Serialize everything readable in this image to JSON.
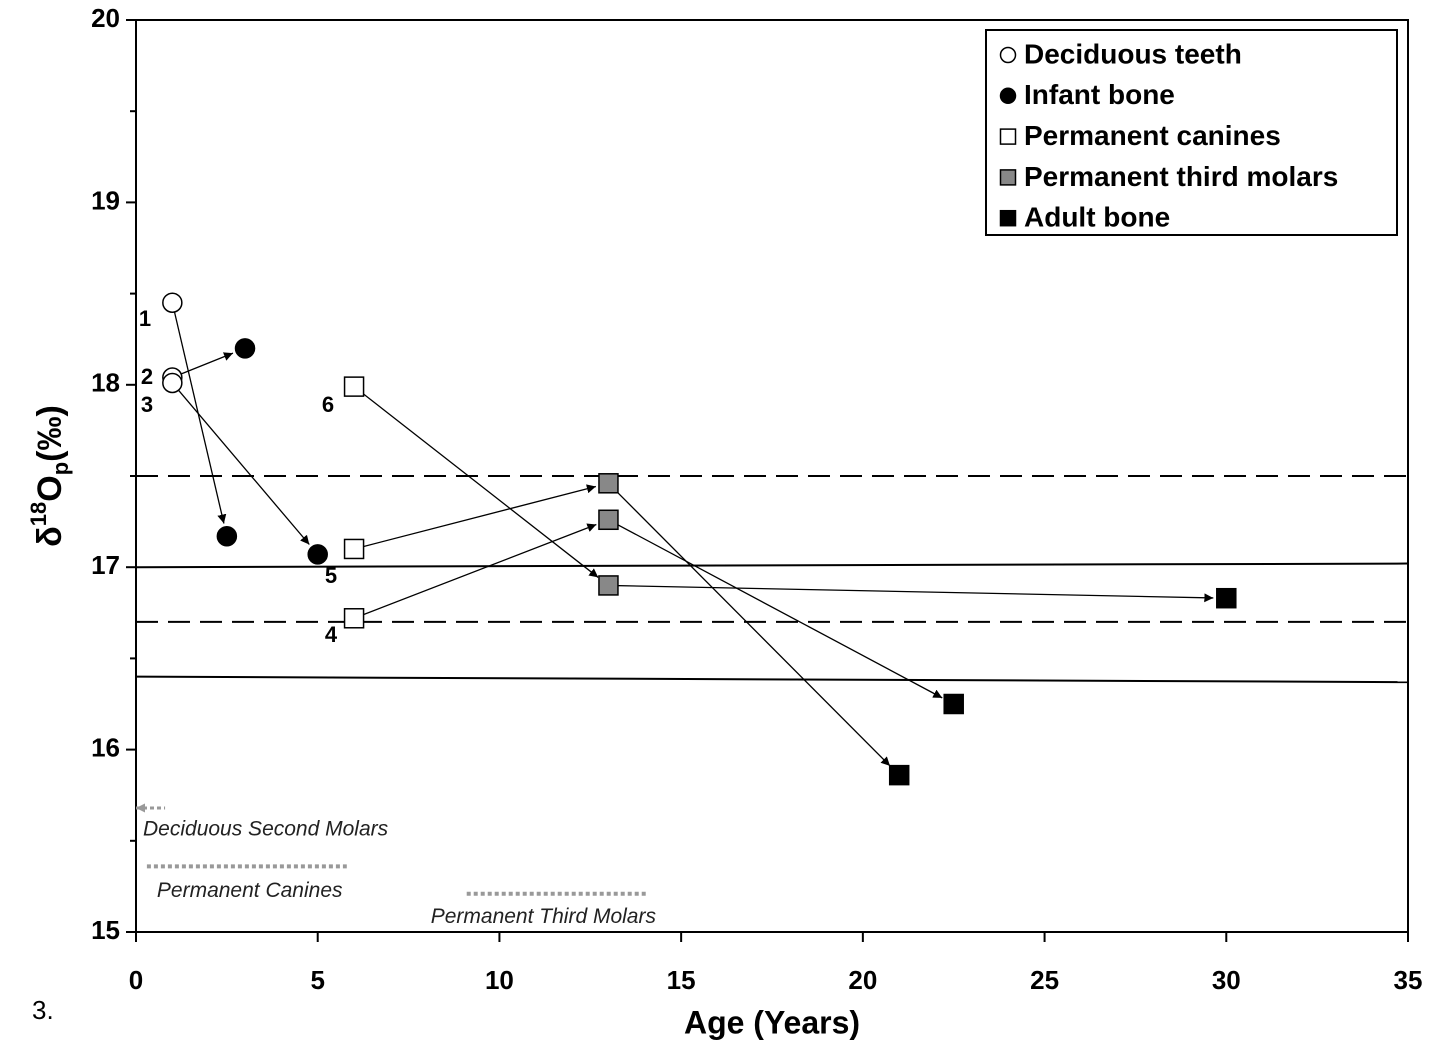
{
  "figure_number": "3.",
  "chart_data": {
    "type": "scatter",
    "xlabel": "Age (Years)",
    "ylabel": {
      "delta": "δ",
      "sup": "18",
      "main": "O",
      "sub": "p",
      "unit": "(‰)"
    },
    "xlim": [
      0,
      35
    ],
    "xticks": [
      0,
      5,
      10,
      15,
      20,
      25,
      30,
      35
    ],
    "ylim": [
      15,
      20
    ],
    "yticks": [
      15,
      16,
      17,
      18,
      19,
      20
    ],
    "yminor": [
      15.5,
      16.5,
      17.5,
      18.5,
      19.5
    ],
    "legend": "upper right",
    "series": [
      {
        "name": "Deciduous teeth",
        "marker": "circle",
        "color": "#ffffff",
        "x": [
          1,
          1,
          1
        ],
        "values": [
          18.45,
          18.04,
          18.01
        ]
      },
      {
        "name": "Infant bone",
        "marker": "circle",
        "color": "#000000",
        "x": [
          3,
          2.5,
          5
        ],
        "values": [
          18.2,
          17.17,
          17.07
        ]
      },
      {
        "name": "Permanent canines",
        "marker": "square",
        "color": "#ffffff",
        "x": [
          6,
          6,
          6
        ],
        "values": [
          17.99,
          17.1,
          16.72
        ]
      },
      {
        "name": "Permanent third molars",
        "marker": "square",
        "color": "#888888",
        "x": [
          13,
          13,
          13
        ],
        "values": [
          17.46,
          17.26,
          16.9
        ]
      },
      {
        "name": "Adult bone",
        "marker": "square",
        "color": "#000000",
        "x": [
          30,
          22.5,
          21
        ],
        "values": [
          16.83,
          16.25,
          15.86
        ]
      }
    ],
    "point_labels": [
      "1",
      "2",
      "3",
      "6",
      "5",
      "4"
    ],
    "reference_lines": [
      {
        "style": "dashed",
        "values": [
          17.5,
          17.5
        ]
      },
      {
        "style": "solid",
        "values": [
          17.0,
          17.02
        ]
      },
      {
        "style": "dashed",
        "values": [
          16.7,
          16.7
        ]
      },
      {
        "style": "solid",
        "values": [
          16.4,
          16.37
        ]
      }
    ],
    "ranges": [
      {
        "label": "Deciduous Second Molars",
        "x": [
          0,
          0.8
        ],
        "y": 15.68
      },
      {
        "label": "Permanent Canines",
        "x": [
          0.3,
          5.8
        ],
        "y": 15.36
      },
      {
        "label": "Permanent Third Molars",
        "x": [
          9.1,
          14.1
        ],
        "y": 15.21
      }
    ]
  }
}
